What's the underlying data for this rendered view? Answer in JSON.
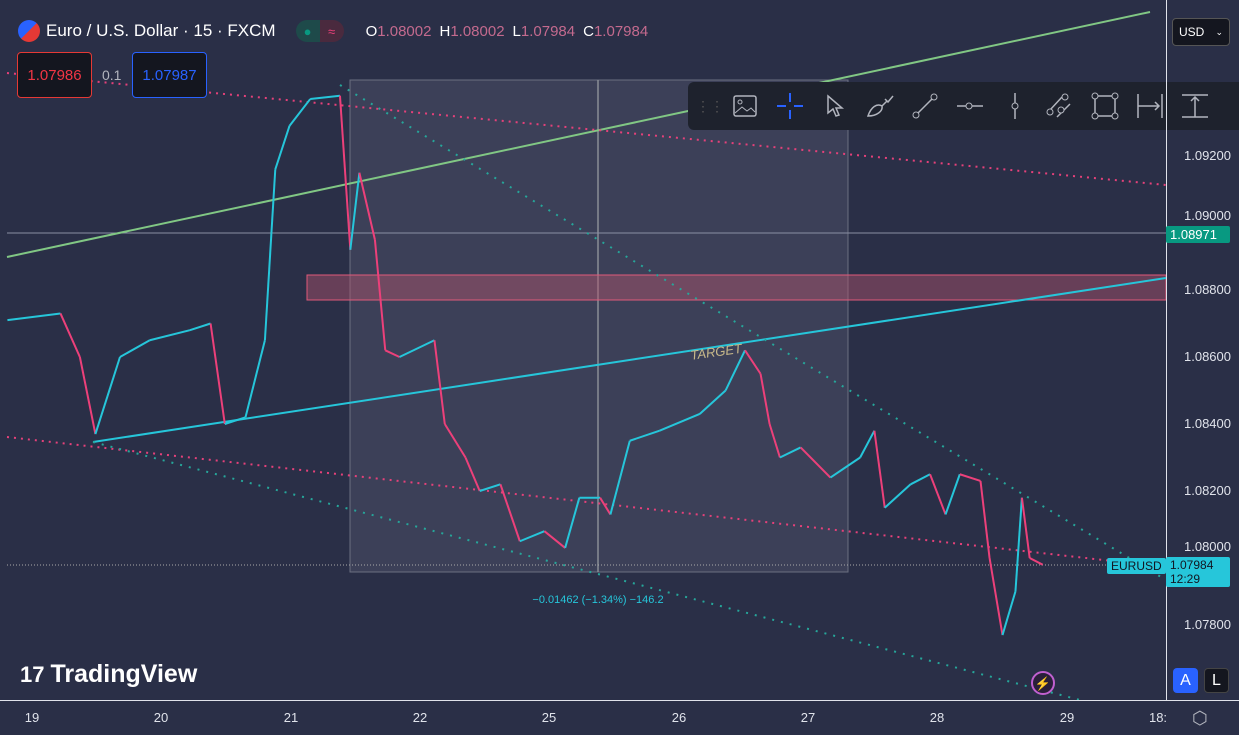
{
  "header": {
    "symbol": "Euro / U.S. Dollar · 15 · FXCM",
    "status_icon": "market-open-dot",
    "approx_icon": "≈",
    "ohlc": {
      "o_label": "O",
      "o": "1.08002",
      "h_label": "H",
      "h": "1.08002",
      "l_label": "L",
      "l": "1.07984",
      "c_label": "C",
      "c": "1.07984"
    }
  },
  "trade": {
    "sell": "1.07986",
    "spread": "0.1",
    "buy": "1.07987"
  },
  "currency": "USD",
  "toolbar": [
    "image-icon",
    "crosshair-icon",
    "cursor-icon",
    "brush-icon",
    "trend-line-icon",
    "horizontal-ray-icon",
    "vertical-line-icon",
    "parallel-channel-icon",
    "rectangle-icon",
    "date-range-icon",
    "price-range-icon"
  ],
  "annotations": {
    "target": "TARGET",
    "measure": "−0.01462 (−1.34%) −146.2"
  },
  "price_tags": {
    "level": "1.08971",
    "symbol": "EURUSD",
    "last": "1.07984",
    "countdown": "12:29"
  },
  "axis_buttons": {
    "auto": "A",
    "log": "L"
  },
  "logo": "TradingView",
  "colors": {
    "up": "#26c6da",
    "down": "#ec407a",
    "bg": "#2a2f47",
    "level": "#089981",
    "tag": "#26c6da"
  },
  "chart_data": {
    "type": "line",
    "title": "Euro / U.S. Dollar · 15 · FXCM",
    "xlabel": "",
    "ylabel": "",
    "x_ticks": [
      "19",
      "20",
      "21",
      "22",
      "25",
      "26",
      "27",
      "28",
      "29",
      "18:"
    ],
    "y_ticks": [
      "1.09200",
      "1.09000",
      "1.08800",
      "1.08600",
      "1.08400",
      "1.08200",
      "1.08000",
      "1.07800"
    ],
    "ylim": [
      1.0763,
      1.0935
    ],
    "x": [
      -0.19,
      0.22,
      0.37,
      0.49,
      0.68,
      0.91,
      1.22,
      1.38,
      1.49,
      1.65,
      1.8,
      1.88,
      1.99,
      2.15,
      2.38,
      2.46,
      2.53,
      2.65,
      2.73,
      2.84,
      3.11,
      3.19,
      3.35,
      3.46,
      3.62,
      3.77,
      3.96,
      4.12,
      4.23,
      4.39,
      4.47,
      4.62,
      4.85,
      5.16,
      5.36,
      5.51,
      5.63,
      5.7,
      5.78,
      5.94,
      6.17,
      6.4,
      6.51,
      6.59,
      6.79,
      6.94,
      7.06,
      7.17,
      7.33,
      7.4,
      7.5,
      7.6,
      7.65,
      7.71,
      7.81
    ],
    "y": [
      1.0871,
      1.0873,
      1.086,
      1.0837,
      1.086,
      1.0865,
      1.0868,
      1.087,
      1.084,
      1.0842,
      1.0865,
      1.0916,
      1.0929,
      1.0937,
      1.0938,
      1.0892,
      1.0915,
      1.0895,
      1.0862,
      1.086,
      1.0865,
      1.084,
      1.083,
      1.082,
      1.0822,
      1.0805,
      1.0808,
      1.0803,
      1.0818,
      1.0818,
      1.0813,
      1.0835,
      1.0838,
      1.0843,
      1.085,
      1.0862,
      1.0855,
      1.084,
      1.083,
      1.0833,
      1.0824,
      1.083,
      1.0838,
      1.0815,
      1.0822,
      1.0825,
      1.0813,
      1.0825,
      1.0823,
      1.08,
      1.0777,
      1.079,
      1.0818,
      1.08,
      1.0798
    ]
  }
}
